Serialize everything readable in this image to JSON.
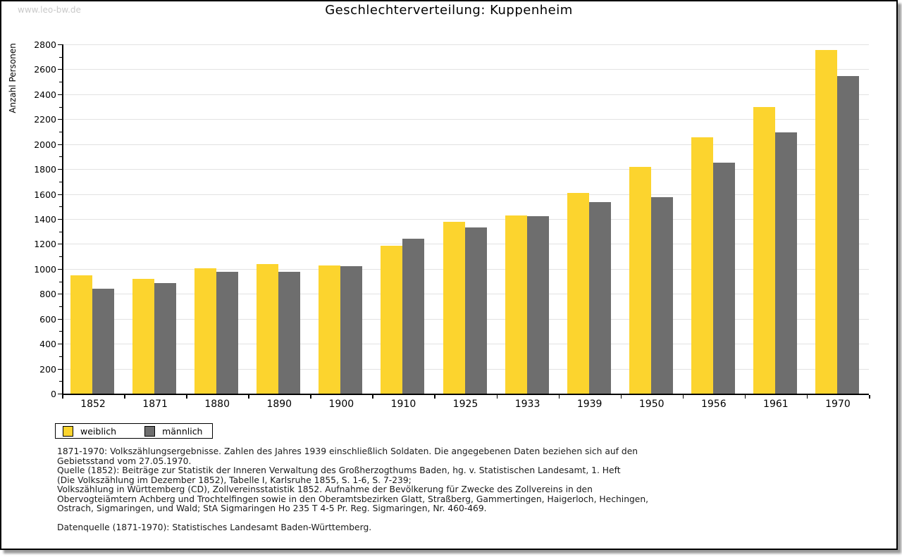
{
  "watermark": "www.leo-bw.de",
  "chart_data": {
    "type": "bar",
    "title": "Geschlechterverteilung: Kuppenheim",
    "ylabel": "Anzahl Personen",
    "xlabel": "",
    "ylim": [
      0,
      2800
    ],
    "ytick_step": 200,
    "yticks": [
      0,
      200,
      400,
      600,
      800,
      1000,
      1200,
      1400,
      1600,
      1800,
      2000,
      2200,
      2400,
      2600,
      2800
    ],
    "minor_tick_step": 100,
    "grid": true,
    "legend_position": "bottom-left",
    "categories": [
      "1852",
      "1871",
      "1880",
      "1890",
      "1900",
      "1910",
      "1925",
      "1933",
      "1939",
      "1950",
      "1956",
      "1961",
      "1970"
    ],
    "series": [
      {
        "name": "weiblich",
        "color": "#FCD42E",
        "values": [
          950,
          920,
          1005,
          1040,
          1025,
          1185,
          1380,
          1430,
          1610,
          1820,
          2055,
          2300,
          2755
        ]
      },
      {
        "name": "männlich",
        "color": "#6E6E6E",
        "values": [
          840,
          885,
          975,
          975,
          1020,
          1240,
          1335,
          1420,
          1535,
          1575,
          1850,
          2095,
          2545
        ]
      }
    ]
  },
  "colors": {
    "weiblich": "#FCD42E",
    "männlich": "#6E6E6E",
    "gridline": "#E2E2E2",
    "watermark": "#C9C9C9"
  },
  "legend": {
    "items": [
      {
        "label": "weiblich"
      },
      {
        "label": "männlich"
      }
    ]
  },
  "notes": [
    "1871-1970: Volkszählungsergebnisse. Zahlen des Jahres 1939 einschließlich Soldaten. Die angegebenen Daten beziehen sich auf den",
    "Gebietsstand vom 27.05.1970.",
    "Quelle (1852): Beiträge zur Statistik der Inneren Verwaltung des Großherzogthums Baden, hg. v. Statistischen Landesamt, 1. Heft",
    "(Die Volkszählung im Dezember 1852), Tabelle I, Karlsruhe 1855, S. 1-6, S. 7-239;",
    "Volkszählung in Württemberg (CD), Zollvereinsstatistik 1852. Aufnahme der Bevölkerung für Zwecke des Zollvereins in den",
    "Obervogteiämtern Achberg und Trochtelfingen sowie in den Oberamtsbezirken Glatt, Straßberg, Gammertingen, Haigerloch, Hechingen,",
    "Ostrach, Sigmaringen, und Wald; StA Sigmaringen Ho 235 T 4-5 Pr. Reg. Sigmaringen, Nr. 460-469."
  ],
  "datasource": "Datenquelle (1871-1970): Statistisches Landesamt Baden-Württemberg."
}
